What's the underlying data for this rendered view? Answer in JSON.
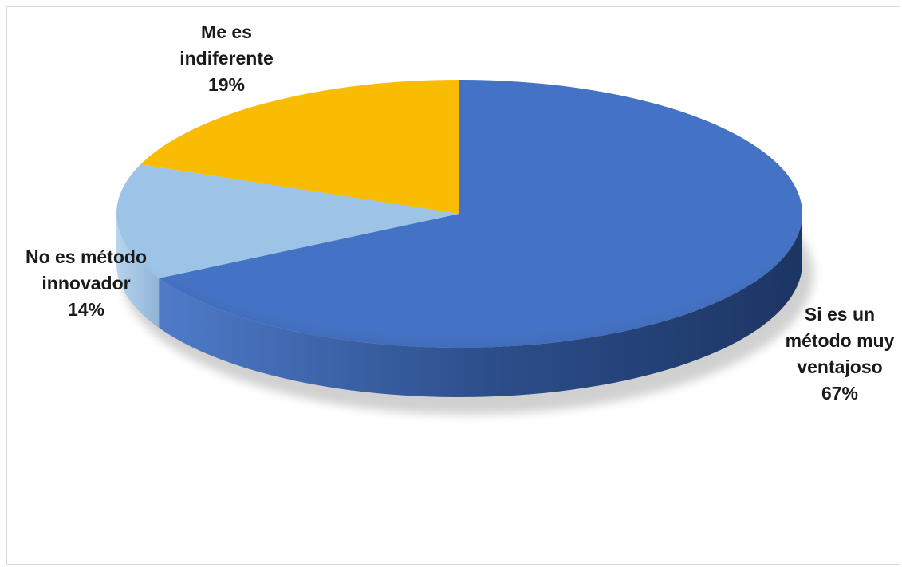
{
  "chart_data": {
    "type": "pie",
    "style": "3d",
    "categories": [
      "Si es un método muy ventajoso",
      "No es método innovador",
      "Me es indiferente"
    ],
    "values": [
      67,
      14,
      19
    ],
    "data_labels": [
      "67%",
      "14%",
      "19%"
    ],
    "colors": [
      "#4472c4",
      "#9dc3e6",
      "#f9bc02"
    ],
    "label_lines": [
      [
        "Si es un",
        "método muy",
        "ventajoso",
        "67%"
      ],
      [
        "No es método",
        "innovador",
        "14%"
      ],
      [
        "Me es",
        "indiferente",
        "19%"
      ]
    ],
    "legend": "none",
    "title": ""
  }
}
